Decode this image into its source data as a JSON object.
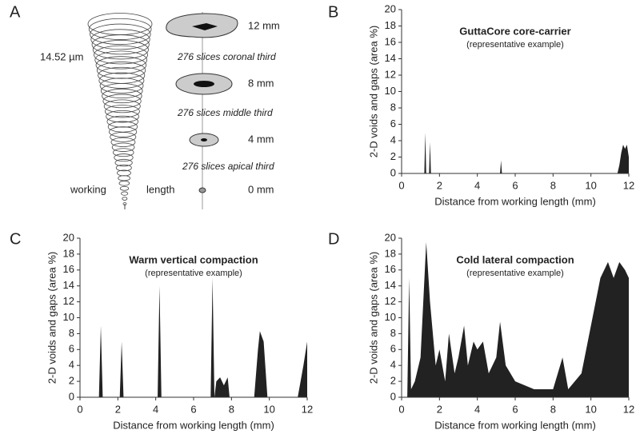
{
  "panel_a": {
    "label": "A",
    "resolution": "14.52 µm",
    "levels": [
      "12 mm",
      "8 mm",
      "4 mm",
      "0 mm"
    ],
    "slices": [
      "276 slices coronal third",
      "276 slices middle third",
      "276 slices apical third"
    ],
    "working": "working",
    "length": "length"
  },
  "chart_data": [
    {
      "type": "area",
      "label": "B",
      "title": "GuttaCore core-carrier",
      "subtitle": "(representative example)",
      "x_label": "Distance from working length (mm)",
      "y_label": "2-D voids and gaps (area %)",
      "color": "#222222",
      "x": [
        0,
        1.2,
        1.25,
        1.3,
        1.45,
        1.5,
        1.55,
        5.2,
        5.25,
        5.3,
        11.4,
        11.5,
        11.6,
        11.7,
        11.8,
        11.9,
        12
      ],
      "values": [
        0,
        0,
        5,
        0,
        0,
        3.8,
        0,
        0,
        1.6,
        0,
        0,
        1,
        2.5,
        3.5,
        3,
        3.5,
        2
      ],
      "xlim": [
        0,
        12
      ],
      "xticks": [
        0,
        2,
        4,
        6,
        8,
        10,
        12
      ],
      "ylim": [
        0,
        20
      ],
      "yticks": [
        0,
        2,
        4,
        6,
        8,
        10,
        12,
        14,
        16,
        18,
        20
      ]
    },
    {
      "type": "area",
      "label": "C",
      "title": "Warm vertical compaction",
      "subtitle": "(representative example)",
      "x_label": "Distance from working length (mm)",
      "y_label": "2-D voids and gaps (area %)",
      "color": "#222222",
      "x": [
        0,
        1,
        1.1,
        1.2,
        2.1,
        2.2,
        2.3,
        4.1,
        4.2,
        4.3,
        6.9,
        7.0,
        7.1,
        7.2,
        7.4,
        7.6,
        7.8,
        7.9,
        9.2,
        9.4,
        9.5,
        9.7,
        9.9,
        11.5,
        11.8,
        12
      ],
      "values": [
        0,
        0,
        9,
        0,
        0,
        7,
        0,
        0,
        14,
        0,
        0,
        15,
        0,
        2,
        2.5,
        1.5,
        2.5,
        0,
        0,
        6,
        8.3,
        7,
        0,
        0,
        4,
        7
      ],
      "xlim": [
        0,
        12
      ],
      "xticks": [
        0,
        2,
        4,
        6,
        8,
        10,
        12
      ],
      "ylim": [
        0,
        20
      ],
      "yticks": [
        0,
        2,
        4,
        6,
        8,
        10,
        12,
        14,
        16,
        18,
        20
      ]
    },
    {
      "type": "area",
      "label": "D",
      "title": "Cold lateral compaction",
      "subtitle": "(representative example)",
      "x_label": "Distance from working length (mm)",
      "y_label": "2-D voids and gaps (area %)",
      "color": "#222222",
      "x": [
        0,
        0.3,
        0.4,
        0.5,
        0.7,
        1.0,
        1.3,
        1.5,
        1.8,
        2.0,
        2.3,
        2.5,
        2.8,
        3.0,
        3.3,
        3.5,
        3.8,
        4.0,
        4.3,
        4.6,
        5.0,
        5.2,
        5.5,
        6.0,
        7.0,
        8.0,
        8.5,
        8.8,
        9.5,
        10.0,
        10.5,
        10.9,
        11.2,
        11.5,
        11.8,
        12
      ],
      "values": [
        0,
        0,
        15,
        1,
        2,
        5,
        19.5,
        12,
        4,
        6,
        2,
        8,
        3,
        5,
        9,
        4,
        7,
        6,
        7,
        3,
        5,
        9.5,
        4,
        2,
        1,
        1,
        5,
        1,
        3,
        9,
        15,
        17,
        15,
        17,
        16,
        15
      ],
      "xlim": [
        0,
        12
      ],
      "xticks": [
        0,
        2,
        4,
        6,
        8,
        10,
        12
      ],
      "ylim": [
        0,
        20
      ],
      "yticks": [
        0,
        2,
        4,
        6,
        8,
        10,
        12,
        14,
        16,
        18,
        20
      ]
    }
  ]
}
